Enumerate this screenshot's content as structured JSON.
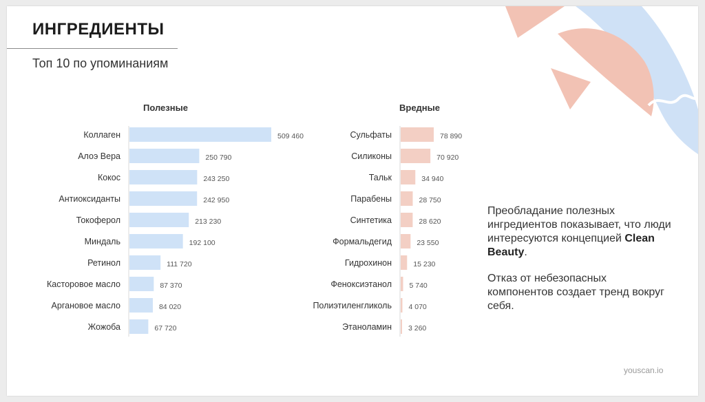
{
  "slide": {
    "title": "ИНГРЕДИЕНТЫ",
    "subtitle": "Топ 10 по упоминаниям",
    "description_p1_before": "Преобладание полезных ингредиентов показывает, что люди интересуются концепцией ",
    "description_p1_bold": "Clean Beauty",
    "description_p1_after": ".",
    "description_p2": "Отказ от небезопасных компонентов создает тренд вокруг себя.",
    "footer": "youscan.io"
  },
  "colors": {
    "good_bar": "#cfe2f7",
    "bad_bar": "#f3cfc4",
    "deco_blue": "#cfe1f6",
    "deco_pink": "#f2c2b4"
  },
  "chart_data": [
    {
      "type": "bar",
      "orientation": "horizontal",
      "title": "Полезные",
      "categories": [
        "Коллаген",
        "Алоэ Вера",
        "Кокос",
        "Антиоксиданты",
        "Токоферол",
        "Миндаль",
        "Ретинол",
        "Касторовое масло",
        "Аргановое масло",
        "Жожоба"
      ],
      "values": [
        509460,
        250790,
        243250,
        242950,
        213230,
        192100,
        111720,
        87370,
        84020,
        67720
      ],
      "value_labels": [
        "509 460",
        "250 790",
        "243 250",
        "242 950",
        "213 230",
        "192 100",
        "111 720",
        "87 370",
        "84 020",
        "67 720"
      ],
      "grid": false
    },
    {
      "type": "bar",
      "orientation": "horizontal",
      "title": "Вредные",
      "categories": [
        "Сульфаты",
        "Силиконы",
        "Тальк",
        "Парабены",
        "Синтетика",
        "Формальдегид",
        "Гидрохинон",
        "Феноксиэтанол",
        "Полиэтиленгликоль",
        "Этаноламин"
      ],
      "values": [
        78890,
        70920,
        34940,
        28750,
        28620,
        23550,
        15230,
        5740,
        4070,
        3260
      ],
      "value_labels": [
        "78 890",
        "70 920",
        "34 940",
        "28 750",
        "28 620",
        "23 550",
        "15 230",
        "5 740",
        "4 070",
        "3 260"
      ],
      "grid": false
    }
  ]
}
